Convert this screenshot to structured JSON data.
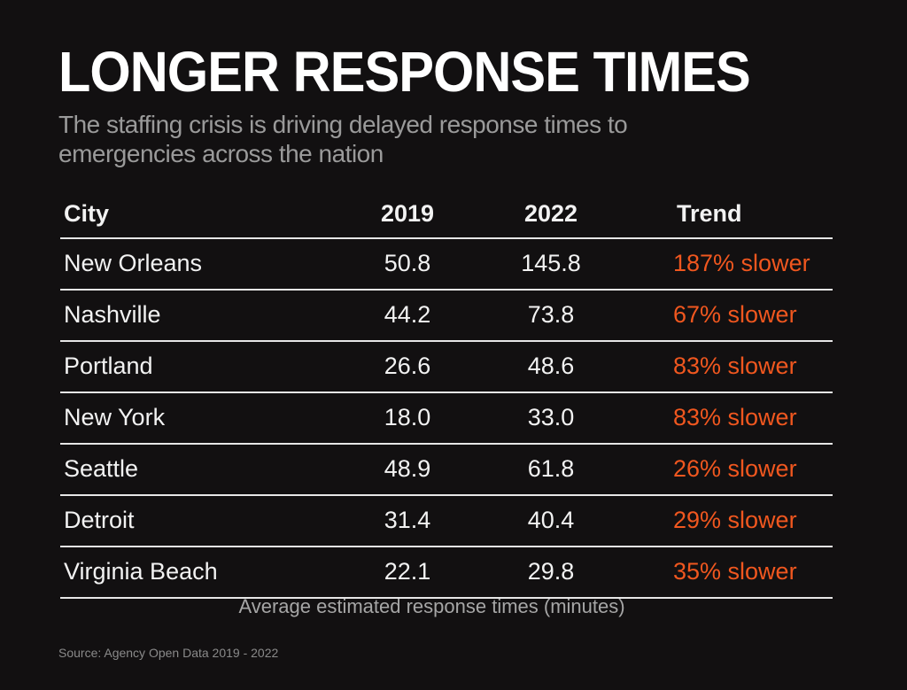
{
  "title": "LONGER RESPONSE TIMES",
  "subtitle": "The staffing crisis is driving delayed response times to emergencies across the nation",
  "caption": "Average estimated response times (minutes)",
  "source": "Source: Agency Open Data  2019 - 2022",
  "colors": {
    "background": "#121011",
    "accent": "#f0571f",
    "text": "#ffffff"
  },
  "chart_data": {
    "type": "table",
    "title": "LONGER RESPONSE TIMES",
    "subtitle": "The staffing crisis is driving delayed response times to emergencies across the nation",
    "columns": [
      "City",
      "2019",
      "2022",
      "Trend"
    ],
    "rows": [
      {
        "city": "New Orleans",
        "y2019": "50.8",
        "y2022": "145.8",
        "trend": "187% slower"
      },
      {
        "city": "Nashville",
        "y2019": "44.2",
        "y2022": "73.8",
        "trend": "67% slower"
      },
      {
        "city": "Portland",
        "y2019": "26.6",
        "y2022": "48.6",
        "trend": "83% slower"
      },
      {
        "city": "New York",
        "y2019": "18.0",
        "y2022": "33.0",
        "trend": "83% slower"
      },
      {
        "city": "Seattle",
        "y2019": "48.9",
        "y2022": "61.8",
        "trend": "26% slower"
      },
      {
        "city": "Detroit",
        "y2019": "31.4",
        "y2022": "40.4",
        "trend": "29% slower"
      },
      {
        "city": "Virginia Beach",
        "y2019": "22.1",
        "y2022": "29.8",
        "trend": "35% slower"
      }
    ],
    "unit": "minutes"
  }
}
